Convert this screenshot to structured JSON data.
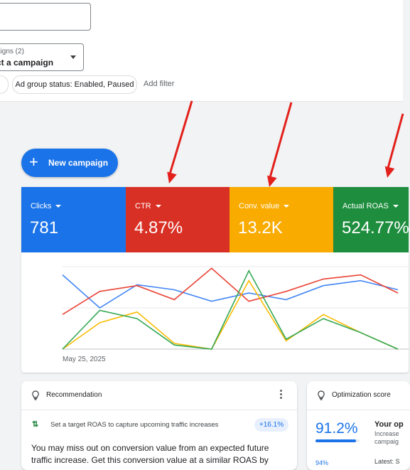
{
  "filters": {
    "campaigns_label": "aigns (2)",
    "campaigns_value": "ct a campaign",
    "ad_group_status_chip": "Ad group status: Enabled, Paused",
    "add_filter_label": "Add filter"
  },
  "new_campaign": {
    "label": "New campaign"
  },
  "metrics": [
    {
      "label": "Clicks",
      "value": "781",
      "color": "#1a73e8"
    },
    {
      "label": "CTR",
      "value": "4.87%",
      "color": "#d93025"
    },
    {
      "label": "Conv. value",
      "value": "13.2K",
      "color": "#f9ab00"
    },
    {
      "label": "Actual ROAS",
      "value": "524.77%",
      "color": "#1e8e3e"
    }
  ],
  "chart_data": {
    "type": "line",
    "x_start_label": "May 25, 2025",
    "grid": true,
    "series": [
      {
        "color": "#4285f4",
        "values": [
          0.9,
          0.5,
          0.78,
          0.72,
          0.58,
          0.68,
          0.6,
          0.77,
          0.83,
          0.72
        ]
      },
      {
        "color": "#ea4335",
        "values": [
          0.42,
          0.7,
          0.77,
          0.6,
          0.98,
          0.58,
          0.7,
          0.85,
          0.9,
          0.68
        ]
      },
      {
        "color": "#fbbc04",
        "values": [
          0.0,
          0.32,
          0.45,
          0.07,
          0.0,
          0.83,
          0.1,
          0.42,
          0.2,
          0.0
        ]
      },
      {
        "color": "#34a853",
        "values": [
          0.0,
          0.47,
          0.37,
          0.05,
          0.0,
          0.95,
          0.12,
          0.37,
          0.2,
          0.0
        ]
      }
    ]
  },
  "recommendation": {
    "title": "Recommendation",
    "headline": "Set a target ROAS to capture upcoming traffic increases",
    "badge": "+16.1%",
    "body": "You may miss out on conversion value from an expected future traffic increase. Get this conversion value at a similar ROAS by"
  },
  "optimization": {
    "title": "Optimization score",
    "score": "91.2%",
    "score_fraction": 0.912,
    "heading": "Your op",
    "sub_line1": "Increase",
    "sub_line2": "campaig",
    "small_pct": "94%",
    "latest": "Latest: S"
  },
  "annotation_color": "#e3201b"
}
